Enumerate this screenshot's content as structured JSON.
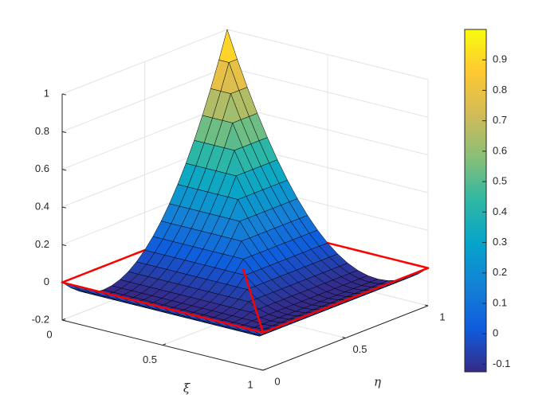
{
  "chart_data": {
    "type": "surface",
    "xlabel": "ξ",
    "ylabel": "η",
    "x": [
      0,
      0.05,
      0.1,
      0.15,
      0.2,
      0.25,
      0.3,
      0.35,
      0.4,
      0.45,
      0.5,
      0.55,
      0.6,
      0.65,
      0.7,
      0.75,
      0.8,
      0.85,
      0.9,
      0.95,
      1
    ],
    "y": [
      0,
      0.05,
      0.1,
      0.15,
      0.2,
      0.25,
      0.3,
      0.35,
      0.4,
      0.45,
      0.5,
      0.55,
      0.6,
      0.65,
      0.7,
      0.75,
      0.8,
      0.85,
      0.9,
      0.95,
      1
    ],
    "z": [
      [
        0,
        -0.045,
        -0.08,
        -0.105,
        -0.12,
        -0.125,
        -0.12,
        -0.105,
        -0.08,
        -0.045,
        0,
        0.055,
        0.12,
        0.195,
        0.28,
        0.375,
        0.48,
        0.595,
        0.72,
        0.855,
        1
      ],
      [
        0,
        -0.045,
        -0.08,
        -0.105,
        -0.12,
        -0.125,
        -0.12,
        -0.105,
        -0.08,
        -0.045,
        0,
        0.055,
        0.12,
        0.195,
        0.28,
        0.375,
        0.48,
        0.595,
        0.72,
        0.855,
        0.855
      ],
      [
        0,
        -0.045,
        -0.08,
        -0.105,
        -0.12,
        -0.125,
        -0.12,
        -0.105,
        -0.08,
        -0.045,
        0,
        0.055,
        0.12,
        0.195,
        0.28,
        0.375,
        0.48,
        0.595,
        0.72,
        0.72,
        0.72
      ],
      [
        0,
        -0.045,
        -0.08,
        -0.105,
        -0.12,
        -0.125,
        -0.12,
        -0.105,
        -0.08,
        -0.045,
        0,
        0.055,
        0.12,
        0.195,
        0.28,
        0.375,
        0.48,
        0.595,
        0.595,
        0.595,
        0.595
      ],
      [
        0,
        -0.045,
        -0.08,
        -0.105,
        -0.12,
        -0.125,
        -0.12,
        -0.105,
        -0.08,
        -0.045,
        0,
        0.055,
        0.12,
        0.195,
        0.28,
        0.375,
        0.48,
        0.48,
        0.48,
        0.48,
        0.48
      ],
      [
        0,
        -0.045,
        -0.08,
        -0.105,
        -0.12,
        -0.125,
        -0.12,
        -0.105,
        -0.08,
        -0.045,
        0,
        0.055,
        0.12,
        0.195,
        0.28,
        0.375,
        0.375,
        0.375,
        0.375,
        0.375,
        0.375
      ],
      [
        0,
        -0.045,
        -0.08,
        -0.105,
        -0.12,
        -0.125,
        -0.12,
        -0.105,
        -0.08,
        -0.045,
        0,
        0.055,
        0.12,
        0.195,
        0.28,
        0.28,
        0.28,
        0.28,
        0.28,
        0.28,
        0.28
      ],
      [
        0,
        -0.045,
        -0.08,
        -0.105,
        -0.12,
        -0.125,
        -0.12,
        -0.105,
        -0.08,
        -0.045,
        0,
        0.055,
        0.12,
        0.195,
        0.195,
        0.195,
        0.195,
        0.195,
        0.195,
        0.195,
        0.195
      ],
      [
        0,
        -0.045,
        -0.08,
        -0.105,
        -0.12,
        -0.125,
        -0.12,
        -0.105,
        -0.08,
        -0.045,
        0,
        0.055,
        0.12,
        0.12,
        0.12,
        0.12,
        0.12,
        0.12,
        0.12,
        0.12,
        0.12
      ],
      [
        0,
        -0.045,
        -0.08,
        -0.105,
        -0.12,
        -0.125,
        -0.12,
        -0.105,
        -0.08,
        -0.045,
        0,
        0.055,
        0.055,
        0.055,
        0.055,
        0.055,
        0.055,
        0.055,
        0.055,
        0.055,
        0.055
      ],
      [
        0,
        -0.045,
        -0.08,
        -0.105,
        -0.12,
        -0.125,
        -0.12,
        -0.105,
        -0.08,
        -0.045,
        0,
        0,
        0,
        0,
        0,
        0,
        0,
        0,
        0,
        0,
        0
      ],
      [
        0,
        -0.045,
        -0.08,
        -0.105,
        -0.12,
        -0.125,
        -0.12,
        -0.105,
        -0.08,
        -0.045,
        -0.045,
        -0.045,
        -0.045,
        -0.045,
        -0.045,
        -0.045,
        -0.045,
        -0.045,
        -0.045,
        -0.045,
        -0.045
      ],
      [
        0,
        -0.045,
        -0.08,
        -0.105,
        -0.12,
        -0.125,
        -0.12,
        -0.105,
        -0.08,
        -0.08,
        -0.08,
        -0.08,
        -0.08,
        -0.08,
        -0.08,
        -0.08,
        -0.08,
        -0.08,
        -0.08,
        -0.08,
        -0.08
      ],
      [
        0,
        -0.045,
        -0.08,
        -0.105,
        -0.12,
        -0.125,
        -0.12,
        -0.105,
        -0.105,
        -0.105,
        -0.105,
        -0.105,
        -0.105,
        -0.105,
        -0.105,
        -0.105,
        -0.105,
        -0.105,
        -0.105,
        -0.105,
        -0.105
      ],
      [
        0,
        -0.045,
        -0.08,
        -0.105,
        -0.12,
        -0.125,
        -0.12,
        -0.12,
        -0.12,
        -0.12,
        -0.12,
        -0.12,
        -0.12,
        -0.12,
        -0.12,
        -0.12,
        -0.12,
        -0.12,
        -0.12,
        -0.12,
        -0.12
      ],
      [
        0,
        -0.045,
        -0.08,
        -0.105,
        -0.12,
        -0.125,
        -0.125,
        -0.125,
        -0.125,
        -0.125,
        -0.125,
        -0.125,
        -0.125,
        -0.125,
        -0.125,
        -0.125,
        -0.125,
        -0.125,
        -0.125,
        -0.125,
        -0.125
      ],
      [
        0,
        -0.045,
        -0.08,
        -0.105,
        -0.12,
        -0.12,
        -0.12,
        -0.12,
        -0.12,
        -0.12,
        -0.12,
        -0.12,
        -0.12,
        -0.12,
        -0.12,
        -0.12,
        -0.12,
        -0.12,
        -0.12,
        -0.12,
        -0.12
      ],
      [
        0,
        -0.045,
        -0.08,
        -0.105,
        -0.105,
        -0.105,
        -0.105,
        -0.105,
        -0.105,
        -0.105,
        -0.105,
        -0.105,
        -0.105,
        -0.105,
        -0.105,
        -0.105,
        -0.105,
        -0.105,
        -0.105,
        -0.105,
        -0.105
      ],
      [
        0,
        -0.045,
        -0.08,
        -0.08,
        -0.08,
        -0.08,
        -0.08,
        -0.08,
        -0.08,
        -0.08,
        -0.08,
        -0.08,
        -0.08,
        -0.08,
        -0.08,
        -0.08,
        -0.08,
        -0.08,
        -0.08,
        -0.08,
        -0.08
      ],
      [
        0,
        -0.045,
        -0.045,
        -0.045,
        -0.045,
        -0.045,
        -0.045,
        -0.045,
        -0.045,
        -0.045,
        -0.045,
        -0.045,
        -0.045,
        -0.045,
        -0.045,
        -0.045,
        -0.045,
        -0.045,
        -0.045,
        -0.045,
        -0.045
      ],
      [
        0,
        0,
        0,
        0,
        0,
        0,
        0,
        0,
        0,
        0,
        0,
        0,
        0,
        0,
        0,
        0,
        0,
        0,
        0,
        0,
        0
      ]
    ],
    "xlim": [
      0,
      1
    ],
    "xticks": [
      0,
      0.5,
      1
    ],
    "ylim": [
      0,
      1
    ],
    "yticks": [
      0,
      0.5,
      1
    ],
    "zlim": [
      -0.2,
      1
    ],
    "zticks": [
      -0.2,
      0,
      0.2,
      0.4,
      0.6,
      0.8,
      1
    ],
    "grid": true,
    "edge_color": "#000000",
    "outline": {
      "color": "#ff0000",
      "z": 0
    },
    "colormap": [
      "#352a87",
      "#0f5cdd",
      "#1481d6",
      "#06a4ca",
      "#2eb7a4",
      "#87bf77",
      "#d1bb59",
      "#fec832",
      "#f9fb0e"
    ],
    "clim": [
      -0.125,
      1
    ],
    "colorbar": {
      "ticks": [
        -0.1,
        0,
        0.1,
        0.2,
        0.3,
        0.4,
        0.5,
        0.6,
        0.7,
        0.8,
        0.9
      ]
    }
  }
}
